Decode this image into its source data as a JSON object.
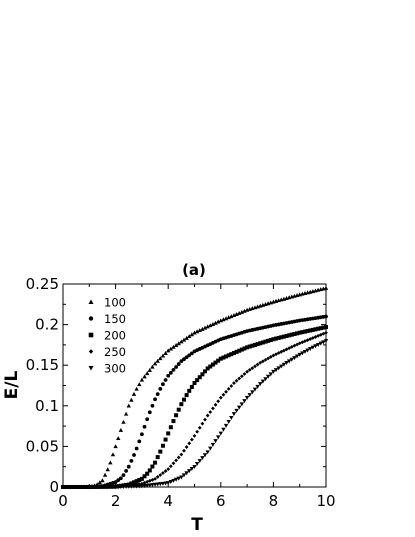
{
  "chart_data": {
    "type": "scatter",
    "title": "(a)",
    "xlabel": "T",
    "ylabel": "E/L",
    "xlim": [
      0,
      10
    ],
    "ylim": [
      0,
      0.25
    ],
    "xticks": [
      0,
      2,
      4,
      6,
      8,
      10
    ],
    "xtick_labels": [
      "0",
      "2",
      "4",
      "6",
      "8",
      "10"
    ],
    "yticks": [
      0,
      0.05,
      0.1,
      0.15,
      0.2,
      0.25
    ],
    "ytick_labels": [
      "0",
      "0.05",
      "0.1",
      "0.15",
      "0.2",
      "0.25"
    ],
    "grid": false,
    "legend_position": "top-left",
    "marker_color": "#000000",
    "series": [
      {
        "name": "100",
        "marker": "triangle-up",
        "x": [
          0.0,
          0.5,
          1.0,
          1.25,
          1.5,
          1.75,
          2.0,
          2.25,
          2.5,
          2.75,
          3.0,
          3.5,
          4.0,
          5.0,
          6.0,
          7.0,
          8.0,
          9.0,
          10.0
        ],
        "y": [
          0.0,
          0.0,
          0.0005,
          0.002,
          0.008,
          0.025,
          0.05,
          0.075,
          0.1,
          0.118,
          0.132,
          0.152,
          0.168,
          0.19,
          0.205,
          0.218,
          0.228,
          0.237,
          0.245
        ]
      },
      {
        "name": "150",
        "marker": "circle",
        "x": [
          0.0,
          1.0,
          1.5,
          2.0,
          2.25,
          2.5,
          2.75,
          3.0,
          3.25,
          3.5,
          3.75,
          4.0,
          4.5,
          5.0,
          6.0,
          7.0,
          8.0,
          9.0,
          10.0
        ],
        "y": [
          0.0,
          0.0,
          0.001,
          0.006,
          0.012,
          0.025,
          0.043,
          0.065,
          0.088,
          0.108,
          0.124,
          0.137,
          0.155,
          0.167,
          0.182,
          0.192,
          0.199,
          0.205,
          0.21
        ]
      },
      {
        "name": "200",
        "marker": "square",
        "x": [
          0.0,
          1.0,
          2.0,
          2.5,
          3.0,
          3.25,
          3.5,
          3.75,
          4.0,
          4.25,
          4.5,
          4.75,
          5.0,
          5.5,
          6.0,
          7.0,
          8.0,
          9.0,
          10.0
        ],
        "y": [
          0.0,
          0.0,
          0.0005,
          0.003,
          0.01,
          0.018,
          0.03,
          0.047,
          0.066,
          0.085,
          0.102,
          0.116,
          0.128,
          0.146,
          0.158,
          0.172,
          0.182,
          0.19,
          0.197
        ]
      },
      {
        "name": "250",
        "marker": "diamond",
        "x": [
          0.0,
          1.0,
          2.0,
          3.0,
          3.5,
          4.0,
          4.5,
          5.0,
          5.5,
          6.0,
          6.5,
          7.0,
          7.5,
          8.0,
          9.0,
          10.0
        ],
        "y": [
          0.0,
          0.0,
          0.0005,
          0.004,
          0.01,
          0.022,
          0.04,
          0.063,
          0.088,
          0.11,
          0.128,
          0.142,
          0.153,
          0.162,
          0.177,
          0.19
        ]
      },
      {
        "name": "300",
        "marker": "triangle-down",
        "x": [
          0.0,
          1.0,
          2.0,
          3.0,
          4.0,
          4.5,
          5.0,
          5.5,
          6.0,
          6.5,
          7.0,
          7.5,
          8.0,
          8.5,
          9.0,
          9.5,
          10.0
        ],
        "y": [
          0.0,
          0.0,
          0.0,
          0.001,
          0.005,
          0.012,
          0.025,
          0.043,
          0.066,
          0.09,
          0.11,
          0.127,
          0.142,
          0.153,
          0.163,
          0.172,
          0.18
        ]
      }
    ]
  }
}
